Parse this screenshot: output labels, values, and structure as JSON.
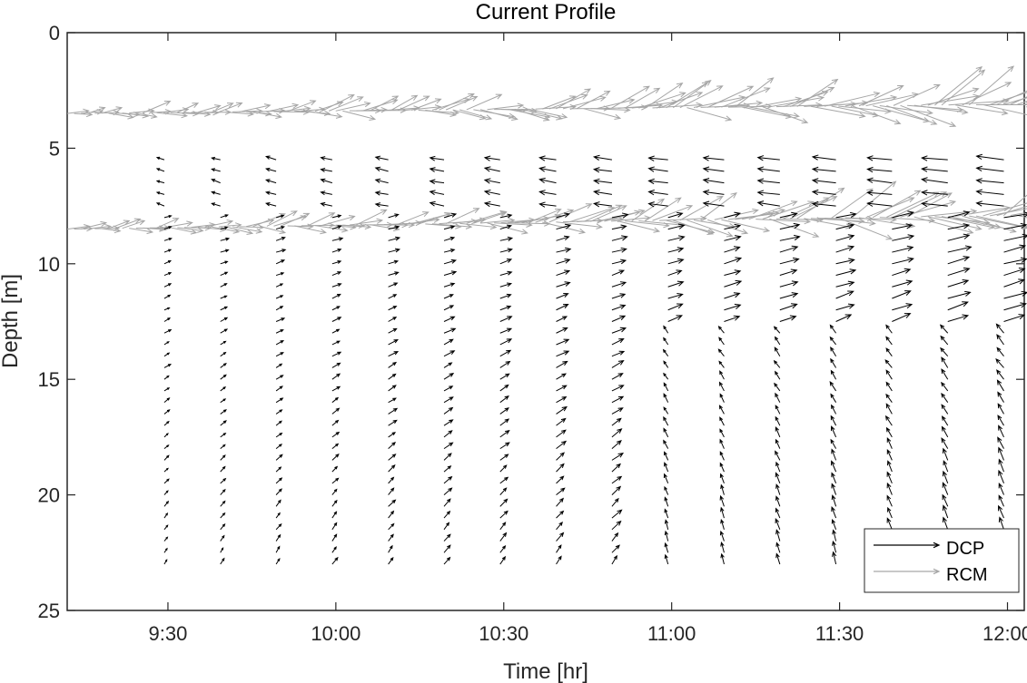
{
  "chart_data": {
    "type": "quiver",
    "title": "Current Profile",
    "xlabel": "Time [hr]",
    "ylabel": "Depth [m]",
    "xlim": [
      9.2,
      12.05
    ],
    "ylim": [
      0,
      25
    ],
    "y_reversed": true,
    "x_ticks": [
      {
        "value": 9.5,
        "label": "9:30"
      },
      {
        "value": 10.0,
        "label": "10:00"
      },
      {
        "value": 10.5,
        "label": "10:30"
      },
      {
        "value": 11.0,
        "label": "11:00"
      },
      {
        "value": 11.5,
        "label": "11:30"
      },
      {
        "value": 12.0,
        "label": "12:00"
      }
    ],
    "y_ticks": [
      {
        "value": 0,
        "label": "0"
      },
      {
        "value": 5,
        "label": "5"
      },
      {
        "value": 10,
        "label": "10"
      },
      {
        "value": 15,
        "label": "15"
      },
      {
        "value": 20,
        "label": "20"
      },
      {
        "value": 25,
        "label": "25"
      }
    ],
    "grid": false,
    "legend_position": "bottom-right",
    "series": [
      {
        "name": "DCP",
        "color": "#000000",
        "profile_times": [
          9.5,
          9.667,
          9.833,
          10.0,
          10.167,
          10.333,
          10.5,
          10.667,
          10.833,
          11.0,
          11.167,
          11.333,
          11.5,
          11.667,
          11.833,
          12.0
        ],
        "depth_range": [
          5.5,
          23.0
        ],
        "depth_step": 0.5,
        "direction_summary": "near-surface arrows point west, deeper arrows point northeast; magnitude increases over time"
      },
      {
        "name": "RCM",
        "color": "#a6a6a6",
        "instrument_depths": [
          3.5,
          8.5
        ],
        "time_range": [
          9.2,
          12.05
        ],
        "direction_summary": "mostly eastward, strengthening after 11:00"
      }
    ]
  }
}
